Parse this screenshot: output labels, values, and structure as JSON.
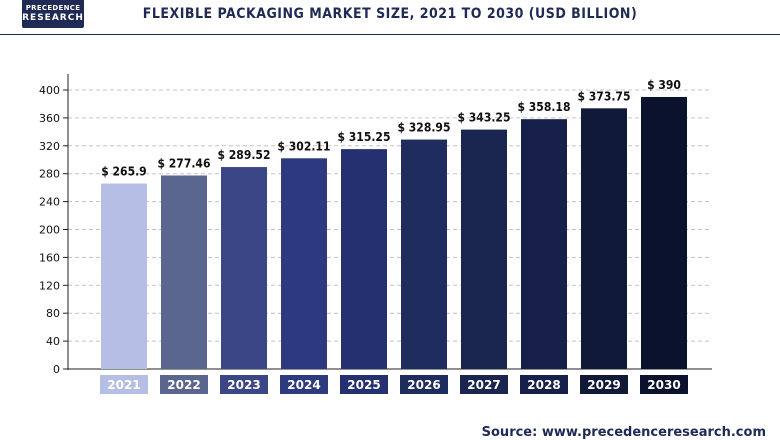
{
  "header": {
    "logo_line1": "PRECEDENCE",
    "logo_line2": "RESEARCH",
    "title": "FLEXIBLE PACKAGING MARKET SIZE, 2021 TO 2030 (USD BILLION)"
  },
  "footer": {
    "source": "Source: www.precedenceresearch.com"
  },
  "chart_data": {
    "type": "bar",
    "title": "FLEXIBLE PACKAGING MARKET SIZE, 2021 TO 2030 (USD BILLION)",
    "xlabel": "",
    "ylabel": "",
    "categories": [
      "2021",
      "2022",
      "2023",
      "2024",
      "2025",
      "2026",
      "2027",
      "2028",
      "2029",
      "2030"
    ],
    "values": [
      265.9,
      277.46,
      289.52,
      302.11,
      315.25,
      328.95,
      343.25,
      358.18,
      373.75,
      390
    ],
    "value_labels": [
      "$ 265.9",
      "$ 277.46",
      "$ 289.52",
      "$ 302.11",
      "$ 315.25",
      "$ 328.95",
      "$ 343.25",
      "$ 358.18",
      "$ 373.75",
      "$ 390"
    ],
    "bar_colors": [
      "#b5bfe6",
      "#5a6590",
      "#3b4687",
      "#2d3a80",
      "#253070",
      "#1f2c5e",
      "#1a2550",
      "#16204a",
      "#101938",
      "#0b122e"
    ],
    "yticks": [
      0,
      40,
      80,
      120,
      160,
      200,
      240,
      280,
      320,
      360,
      400
    ],
    "ylim": [
      0,
      420
    ],
    "grid": "horizontal dashed"
  }
}
